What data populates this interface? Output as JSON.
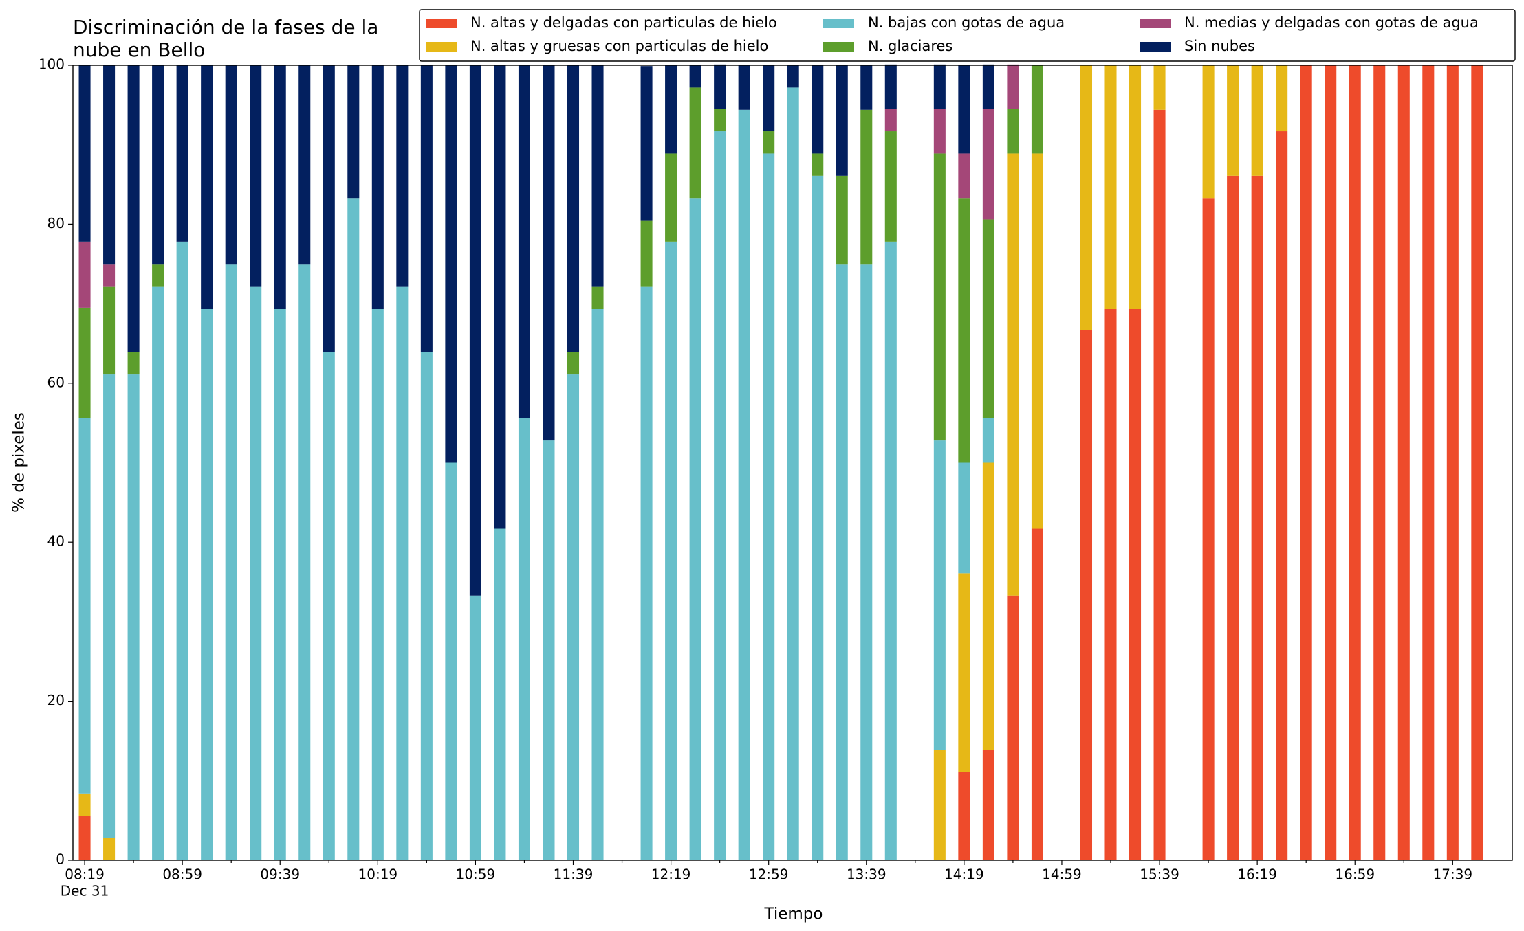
{
  "chart_data": {
    "type": "stacked_bar",
    "title_lines": [
      "Discriminación de la fases de la",
      "nube en Bello"
    ],
    "xlabel": "Tiempo",
    "ylabel": "% de pixeles",
    "x_date_label": "Dec 31",
    "categories": [
      "08:19",
      null,
      null,
      null,
      "08:59",
      null,
      null,
      null,
      "09:39",
      null,
      null,
      null,
      "10:19",
      null,
      null,
      null,
      "10:59",
      null,
      null,
      null,
      "11:39",
      null,
      null,
      null,
      "12:19",
      null,
      null,
      null,
      "12:59",
      null,
      null,
      null,
      "13:39",
      null,
      null,
      null,
      "14:19",
      null,
      null,
      null,
      "14:59",
      null,
      null,
      null,
      "15:39",
      null,
      null,
      null,
      "16:19",
      null,
      null,
      null,
      "16:59",
      null,
      null,
      null,
      "17:39",
      null
    ],
    "series": [
      {
        "name": "N. altas y delgadas con particulas de hielo",
        "color": "#ee4b2b",
        "values": [
          5.6,
          0,
          0,
          0,
          0,
          0,
          0,
          0,
          0,
          0,
          0,
          0,
          0,
          0,
          0,
          0,
          0,
          0,
          0,
          0,
          0,
          0,
          null,
          0,
          0,
          0,
          0,
          0,
          0,
          0,
          0,
          0,
          0,
          0,
          null,
          0,
          11.1,
          13.9,
          33.3,
          41.7,
          null,
          66.7,
          69.4,
          69.4,
          94.4,
          null,
          83.3,
          86.1,
          86.1,
          91.7,
          100,
          100,
          100,
          100,
          100,
          100,
          100,
          100
        ]
      },
      {
        "name": "N. altas y gruesas con particulas de hielo",
        "color": "#e6b817",
        "values": [
          2.8,
          2.8,
          0,
          0,
          0,
          0,
          0,
          0,
          0,
          0,
          0,
          0,
          0,
          0,
          0,
          0,
          0,
          0,
          0,
          0,
          0,
          0,
          null,
          0,
          0,
          0,
          0,
          0,
          0,
          0,
          0,
          0,
          0,
          0,
          null,
          13.9,
          25,
          36.1,
          55.6,
          47.2,
          null,
          33.3,
          30.6,
          30.6,
          5.6,
          null,
          16.7,
          13.9,
          13.9,
          8.3,
          0,
          0,
          0,
          0,
          0,
          0,
          0,
          0
        ]
      },
      {
        "name": "N. bajas con gotas de agua",
        "color": "#67bfca",
        "values": [
          47.2,
          58.3,
          61.1,
          72.2,
          77.8,
          69.4,
          75,
          72.2,
          69.4,
          75,
          63.9,
          83.3,
          69.4,
          72.2,
          63.9,
          50,
          33.3,
          41.7,
          55.6,
          52.8,
          61.1,
          69.4,
          null,
          72.2,
          77.8,
          83.3,
          91.7,
          94.4,
          88.9,
          97.2,
          86.1,
          75,
          75,
          77.8,
          null,
          38.9,
          13.9,
          5.6,
          0,
          0,
          null,
          0,
          0,
          0,
          0,
          null,
          0,
          0,
          0,
          0,
          0,
          0,
          0,
          0,
          0,
          0,
          0,
          0
        ]
      },
      {
        "name": "N. glaciares",
        "color": "#5d9e2c",
        "values": [
          13.9,
          11.1,
          2.8,
          2.8,
          0,
          0,
          0,
          0,
          0,
          0,
          0,
          0,
          0,
          0,
          0,
          0,
          0,
          0,
          0,
          0,
          2.8,
          2.8,
          null,
          8.3,
          11.1,
          13.9,
          2.8,
          0,
          2.8,
          0,
          2.8,
          11.1,
          19.4,
          13.9,
          null,
          36.1,
          33.3,
          25,
          5.6,
          11.1,
          null,
          0,
          0,
          0,
          0,
          null,
          0,
          0,
          0,
          0,
          0,
          0,
          0,
          0,
          0,
          0,
          0,
          0
        ]
      },
      {
        "name": "N. medias y delgadas con gotas de agua",
        "color": "#a44778",
        "values": [
          8.3,
          2.8,
          0,
          0,
          0,
          0,
          0,
          0,
          0,
          0,
          0,
          0,
          0,
          0,
          0,
          0,
          0,
          0,
          0,
          0,
          0,
          0,
          null,
          0,
          0,
          0,
          0,
          0,
          0,
          0,
          0,
          0,
          0,
          2.8,
          null,
          5.6,
          5.6,
          13.9,
          5.6,
          0,
          null,
          0,
          0,
          0,
          0,
          null,
          0,
          0,
          0,
          0,
          0,
          0,
          0,
          0,
          0,
          0,
          0,
          0
        ]
      },
      {
        "name": "Sin nubes",
        "color": "#03205f",
        "values": [
          22.2,
          25,
          36.1,
          25,
          22.2,
          30.6,
          25,
          27.8,
          30.6,
          25,
          36.1,
          16.7,
          30.6,
          27.8,
          36.1,
          50,
          66.7,
          58.3,
          44.4,
          47.2,
          36.1,
          27.8,
          null,
          19.4,
          11.1,
          2.8,
          5.6,
          5.6,
          8.3,
          2.8,
          11.1,
          13.9,
          5.6,
          5.6,
          null,
          5.6,
          11.1,
          5.6,
          0,
          0,
          null,
          0,
          0,
          0,
          0,
          null,
          0,
          0,
          0,
          0,
          0,
          0,
          0,
          0,
          0,
          0,
          0,
          0
        ]
      }
    ],
    "ylim": [
      0,
      100
    ],
    "yticks": [
      0,
      20,
      40,
      60,
      80,
      100
    ],
    "legend": "upper right"
  }
}
